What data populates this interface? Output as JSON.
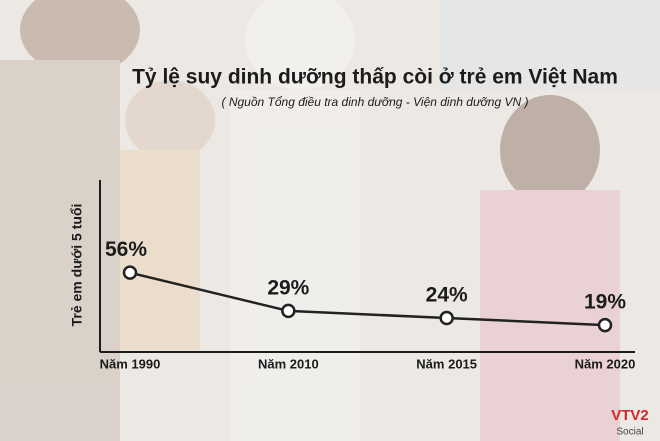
{
  "chart_data": {
    "type": "line",
    "title": "Tỷ lệ suy dinh dưỡng thấp còi ở trẻ em Việt Nam",
    "subtitle": "( Nguồn Tổng điều tra dinh dưỡng - Viện dinh dưỡng VN )",
    "y_label": "Trẻ em dưới 5 tuổi",
    "categories": [
      "Năm 1990",
      "Năm 2010",
      "Năm 2015",
      "Năm 2020"
    ],
    "values": [
      56,
      29,
      24,
      19
    ],
    "value_labels": [
      "56%",
      "29%",
      "24%",
      "19%"
    ],
    "color": "#222222",
    "ylim": [
      0,
      120
    ]
  },
  "logo": {
    "name": "VTV2",
    "sub": "Social"
  }
}
